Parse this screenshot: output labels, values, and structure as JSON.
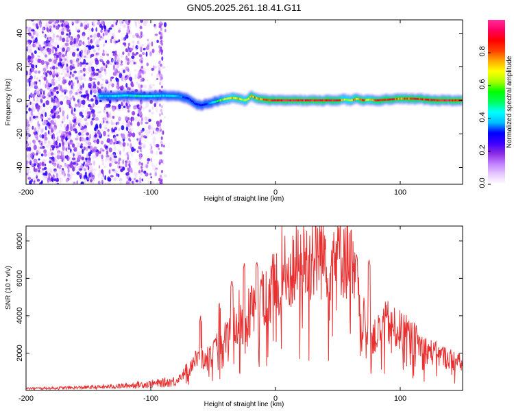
{
  "title": "GN05.2025.261.18.41.G11",
  "chart_data": [
    {
      "type": "heatmap",
      "xlabel": "Height of straight line (km)",
      "ylabel": "Frequency (Hz)",
      "xlim": [
        -200,
        150
      ],
      "ylim": [
        -50,
        48
      ],
      "xticks": [
        -200,
        -100,
        0,
        100
      ],
      "yticks": [
        -40,
        -20,
        0,
        20,
        40
      ],
      "colorbar": {
        "label": "Normalized spectral amplitude",
        "range": [
          0,
          1
        ],
        "ticks": [
          0.0,
          0.2,
          0.4,
          0.6,
          0.8
        ],
        "tick_labels": [
          "0.0",
          "0.2",
          "0.4",
          "0.6",
          "0.8"
        ],
        "colors": [
          "#ffffff",
          "#e8c8ff",
          "#c080ff",
          "#8a2be2",
          "#3a00ff",
          "#0000ff",
          "#00bfff",
          "#00ffff",
          "#00ff60",
          "#00ff00",
          "#aaff00",
          "#ffff00",
          "#ffaa00",
          "#ff4000",
          "#ff0000",
          "#ff0060",
          "#ff2a9a"
        ]
      },
      "ridge": {
        "x": [
          -142,
          -130,
          -120,
          -110,
          -100,
          -90,
          -80,
          -75,
          -70,
          -65,
          -60,
          -55,
          -50,
          -45,
          -40,
          -35,
          -30,
          -25,
          -22,
          -20,
          -18,
          -15,
          -10,
          -5,
          0,
          20,
          40,
          50,
          55,
          60,
          65,
          70,
          75,
          80,
          90,
          100,
          110,
          130,
          150
        ],
        "freq": [
          2.5,
          2.5,
          3,
          2.5,
          2.5,
          2.8,
          2.5,
          2,
          1,
          -2,
          -3,
          -2,
          -1,
          0,
          1,
          1.5,
          1,
          0,
          1,
          3,
          2,
          1,
          0.5,
          0,
          0,
          0,
          0,
          0,
          0.5,
          0,
          1,
          0,
          0.5,
          0,
          0.5,
          1,
          1,
          0,
          0
        ],
        "amplitude": [
          0.4,
          0.45,
          0.45,
          0.5,
          0.45,
          0.45,
          0.4,
          0.35,
          0.3,
          0.3,
          0.3,
          0.35,
          0.5,
          0.6,
          0.7,
          0.75,
          0.8,
          0.7,
          0.8,
          0.85,
          0.8,
          0.8,
          0.85,
          0.9,
          0.95,
          0.95,
          0.95,
          0.9,
          0.7,
          0.75,
          0.8,
          0.85,
          0.75,
          0.85,
          0.9,
          0.85,
          0.9,
          0.95,
          0.95
        ]
      },
      "noise_region": {
        "x_range": [
          -200,
          -88
        ],
        "freq_range": [
          -50,
          48
        ],
        "typical_amplitude": [
          0.05,
          0.2
        ]
      }
    },
    {
      "type": "line",
      "xlabel": "Height of straight line (km)",
      "ylabel": "SNR (10 * v/v)",
      "xlim": [
        -200,
        150
      ],
      "ylim": [
        0,
        8800
      ],
      "xticks": [
        -200,
        -100,
        0,
        100
      ],
      "yticks": [
        2000,
        4000,
        6000,
        8000
      ],
      "color": "#e83030",
      "series": [
        {
          "name": "SNR",
          "x": [
            -200,
            -180,
            -160,
            -140,
            -120,
            -100,
            -90,
            -80,
            -75,
            -70,
            -65,
            -60,
            -55,
            -50,
            -45,
            -40,
            -35,
            -30,
            -25,
            -20,
            -15,
            -10,
            -5,
            0,
            5,
            10,
            15,
            20,
            25,
            30,
            35,
            40,
            45,
            50,
            55,
            60,
            65,
            70,
            75,
            80,
            85,
            90,
            95,
            100,
            110,
            120,
            130,
            140,
            150
          ],
          "y": [
            100,
            120,
            150,
            180,
            250,
            350,
            400,
            500,
            800,
            1200,
            1600,
            1700,
            1500,
            2000,
            2400,
            2800,
            3200,
            3500,
            3800,
            4200,
            4600,
            5000,
            5300,
            5600,
            5900,
            6200,
            6500,
            6800,
            7000,
            7200,
            7350,
            7300,
            7100,
            7500,
            7400,
            7000,
            5000,
            3800,
            3200,
            2800,
            3400,
            3600,
            3300,
            3200,
            2800,
            2200,
            1900,
            1700,
            1400
          ]
        }
      ],
      "peaks": [
        {
          "x": -60,
          "y": 4000
        },
        {
          "x": -45,
          "y": 4700
        },
        {
          "x": -35,
          "y": 5900
        },
        {
          "x": -25,
          "y": 6800
        },
        {
          "x": -15,
          "y": 6900
        },
        {
          "x": 60,
          "y": 8700
        },
        {
          "x": 65,
          "y": 7300
        },
        {
          "x": 75,
          "y": 7000
        }
      ]
    }
  ]
}
